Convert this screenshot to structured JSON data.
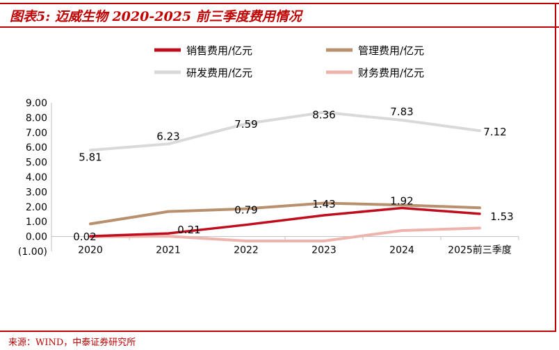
{
  "figure": {
    "title": "图表5:  迈威生物 2020-2025 前三季度费用情况",
    "source": "来源：WIND，中泰证券研究所"
  },
  "colors": {
    "frame": "#c00000",
    "sales": "#c00d1e",
    "mgmt": "#b8906e",
    "rd": "#d9d9d9",
    "fin": "#efb3ad"
  },
  "chart_data": {
    "type": "line",
    "categories": [
      "2020",
      "2021",
      "2022",
      "2023",
      "2024",
      "2025前三季度"
    ],
    "ylim": [
      -1,
      9
    ],
    "yticks": [
      "(1.00)",
      "0.00",
      "1.00",
      "2.00",
      "3.00",
      "4.00",
      "5.00",
      "6.00",
      "7.00",
      "8.00",
      "9.00"
    ],
    "ytick_values": [
      -1,
      0,
      1,
      2,
      3,
      4,
      5,
      6,
      7,
      8,
      9
    ],
    "legend_position": "top",
    "grid": false,
    "series": [
      {
        "key": "sales",
        "name": "销售费用/亿元",
        "values": [
          0.02,
          0.21,
          0.79,
          1.43,
          1.92,
          1.53
        ]
      },
      {
        "key": "mgmt",
        "name": "管理费用/亿元",
        "values": [
          0.85,
          1.68,
          1.87,
          2.25,
          2.12,
          1.93
        ]
      },
      {
        "key": "rd",
        "name": "研发费用/亿元",
        "values": [
          5.81,
          6.23,
          7.59,
          8.36,
          7.83,
          7.12
        ]
      },
      {
        "key": "fin",
        "name": "财务费用/亿元",
        "values": [
          -0.02,
          0.02,
          -0.3,
          -0.3,
          0.4,
          0.57
        ]
      }
    ],
    "data_labels": [
      {
        "series": "rd",
        "index": 0,
        "text": "5.81"
      },
      {
        "series": "rd",
        "index": 1,
        "text": "6.23"
      },
      {
        "series": "rd",
        "index": 2,
        "text": "7.59"
      },
      {
        "series": "rd",
        "index": 3,
        "text": "8.36"
      },
      {
        "series": "rd",
        "index": 4,
        "text": "7.83"
      },
      {
        "series": "rd",
        "index": 5,
        "text": "7.12"
      },
      {
        "series": "sales",
        "index": 0,
        "text": "0.02"
      },
      {
        "series": "sales",
        "index": 1,
        "text": "0.21"
      },
      {
        "series": "sales",
        "index": 2,
        "text": "0.79"
      },
      {
        "series": "sales",
        "index": 3,
        "text": "1.43"
      },
      {
        "series": "sales",
        "index": 4,
        "text": "1.92"
      },
      {
        "series": "sales",
        "index": 5,
        "text": "1.53"
      }
    ]
  }
}
